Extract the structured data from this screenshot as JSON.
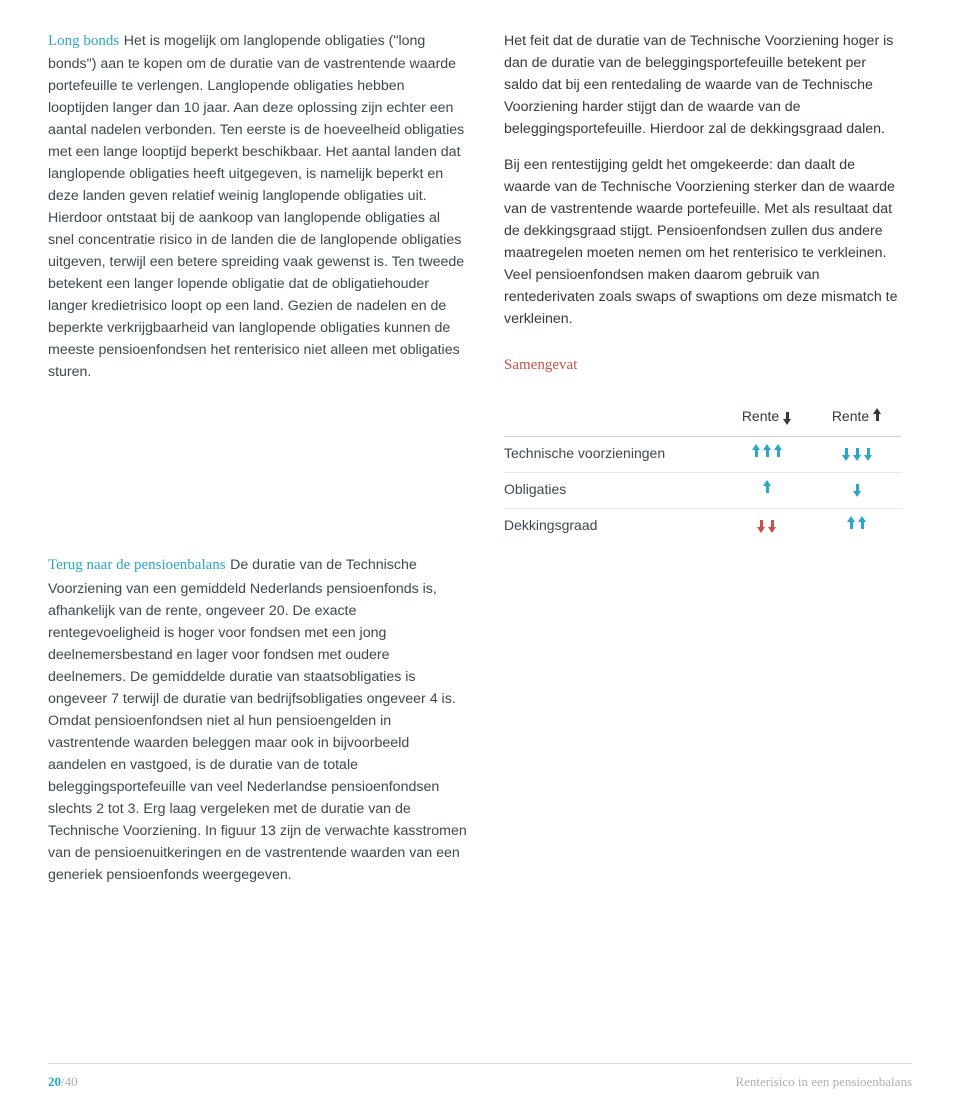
{
  "colors": {
    "teal": "#2aa6c6",
    "red": "#c94f4a",
    "body": "#3b4a50",
    "muted": "#a9b2b5",
    "rule": "#d7dcde"
  },
  "left": {
    "box_heading": "Long bonds",
    "box_body": "Het is mogelijk om langlopende obligaties (\"long bonds\") aan te kopen om de duratie van de vastrentende waarde portefeuille te verlengen. Langlopende obligaties hebben looptijden langer dan 10 jaar. Aan deze oplossing zijn echter een aantal nadelen verbonden. Ten eerste is de hoeveelheid obligaties met een lange looptijd beperkt beschikbaar. Het aantal landen dat langlopende obligaties heeft uitgegeven, is namelijk beperkt en deze landen geven relatief weinig langlopende obligaties uit. Hierdoor ontstaat bij de aankoop van langlopende obligaties al snel concentratie risico in de landen die de langlopende obligaties uitgeven, terwijl een betere spreiding vaak gewenst is. Ten tweede betekent een langer lopende obligatie dat de obligatiehouder langer kredietrisico loopt op een land. Gezien de nadelen en de beperkte verkrijgbaarheid van langlopende obligaties kunnen de meeste pensioenfondsen het renterisico niet alleen met obligaties sturen.",
    "section_heading": "Terug naar de pensioenbalans",
    "section_body": "De duratie van de Technische Voorziening van een gemiddeld Nederlands pensioenfonds is, afhankelijk van de rente, ongeveer 20. De exacte rentegevoeligheid is hoger voor fondsen met een jong deelnemersbestand en lager voor fondsen met oudere deelnemers. De gemiddelde duratie van staatsobligaties is ongeveer 7 terwijl de duratie van bedrijfsobligaties ongeveer 4 is. Omdat pensioenfondsen niet al hun pensioengelden in vastrentende waarden beleggen maar ook in bijvoorbeeld aandelen en vastgoed, is de duratie van de totale beleggingsportefeuille van veel Nederlandse pensioenfondsen slechts 2 tot 3. Erg laag vergeleken met de duratie van de Technische Voorziening. In figuur 13 zijn de verwachte kasstromen van de pensioenuitkeringen en de vastrentende waarden van een generiek pensioenfonds weergegeven."
  },
  "right": {
    "para1": "Het feit dat de duratie van de Technische Voorziening hoger is dan de duratie van de beleggingsportefeuille betekent per saldo dat bij een rentedaling de waarde van de Technische Voorziening harder stijgt dan de waarde van de beleggingsportefeuille. Hierdoor zal de dekkingsgraad dalen.",
    "para2": "Bij een rentestijging geldt het omgekeerde: dan daalt de waarde van de Technische Voorziening sterker dan de waarde van de vastrentende waarde portefeuille. Met als resultaat dat de dekkingsgraad stijgt. Pensioenfondsen zullen dus andere maatregelen moeten nemen om het renterisico te verkleinen. Veel pensioenfondsen maken daarom gebruik van rentederivaten zoals swaps of swaptions om deze mismatch te verkleinen.",
    "summary_heading": "Samengevat"
  },
  "table": {
    "header_label": "Rente",
    "header_col1": {
      "text": "Rente",
      "arrow": "down",
      "arrow_color": "#333a3d"
    },
    "header_col2": {
      "text": "Rente",
      "arrow": "up",
      "arrow_color": "#333a3d"
    },
    "rows": [
      {
        "label": "Technische voorzieningen",
        "col1": {
          "count": 3,
          "dir": "up",
          "color": "#2aa6c6"
        },
        "col2": {
          "count": 3,
          "dir": "down",
          "color": "#2aa6c6"
        }
      },
      {
        "label": "Obligaties",
        "col1": {
          "count": 1,
          "dir": "up",
          "color": "#2aa6c6"
        },
        "col2": {
          "count": 1,
          "dir": "down",
          "color": "#2aa6c6"
        }
      },
      {
        "label": "Dekkingsgraad",
        "col1": {
          "count": 2,
          "dir": "down",
          "color": "#c94f4a"
        },
        "col2": {
          "count": 2,
          "dir": "up",
          "color": "#2aa6c6"
        }
      }
    ]
  },
  "footer": {
    "page_current": "20",
    "page_sep": "/",
    "page_total": "40",
    "doc_title": "Renterisico in een pensioenbalans"
  }
}
